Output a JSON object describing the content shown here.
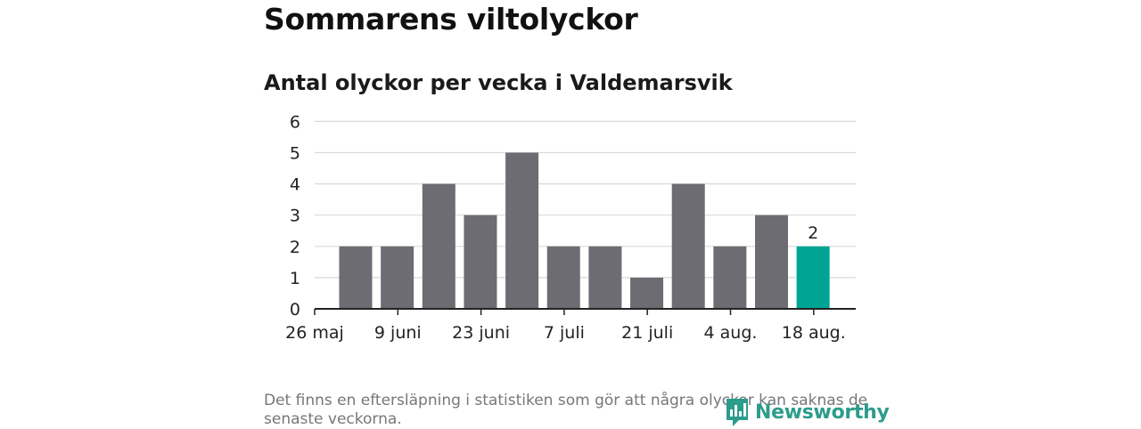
{
  "header": {
    "title": "Sommarens viltolyckor",
    "subtitle": "Antal olyckor per vecka i Valdemarsvik"
  },
  "footer": {
    "note": "Det finns en eftersläpning i statistiken som gör att några olyckor kan saknas de senaste veckorna.",
    "brand": "Newsworthy"
  },
  "colors": {
    "bar": "#6d6c72",
    "highlight": "#00a494",
    "grid": "#d9d9d9",
    "axis": "#222222",
    "brand": "#2c9c8c"
  },
  "chart_data": {
    "type": "bar",
    "title": "Antal olyckor per vecka i Valdemarsvik",
    "xlabel": "",
    "ylabel": "",
    "ylim": [
      0,
      6
    ],
    "yticks": [
      0,
      1,
      2,
      3,
      4,
      5,
      6
    ],
    "grid": true,
    "x_tick_labels": [
      "26 maj",
      "9 juni",
      "23 juni",
      "7 juli",
      "21 juli",
      "4 aug.",
      "18 aug."
    ],
    "values": [
      2,
      2,
      4,
      3,
      5,
      2,
      2,
      1,
      4,
      2,
      3,
      2
    ],
    "highlight_index": 11,
    "highlight_label": "2"
  }
}
